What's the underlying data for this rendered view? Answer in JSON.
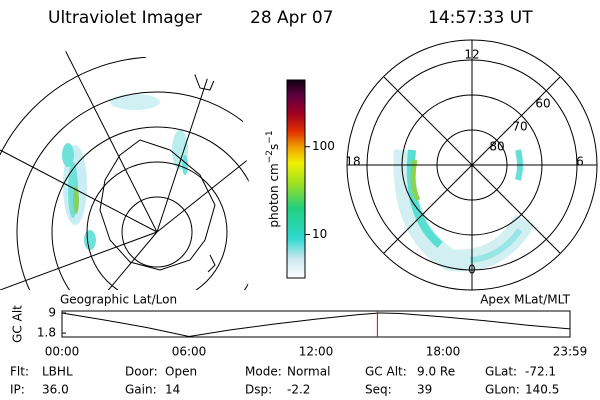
{
  "header": {
    "title": "Ultraviolet Imager",
    "date": "28 Apr 07",
    "time": "14:57:33 UT"
  },
  "colorbar": {
    "label": "photon cm",
    "exp1": "−2",
    "unit2": "s",
    "exp2": "−1",
    "lim": [
      3.2,
      575
    ],
    "log": true,
    "ticks": [
      10,
      100
    ]
  },
  "geo_panel": {
    "label": "Geographic Lat/Lon"
  },
  "polar_panel": {
    "label": "Apex MLat/MLT",
    "mlt_labels": [
      "12",
      "6",
      "0",
      "18"
    ],
    "lat_labels": [
      "80",
      "70",
      "60"
    ]
  },
  "altitude_plot": {
    "y_label": "GC Alt",
    "ylim": [
      0.4,
      9.7
    ],
    "yticks": [
      9.0,
      1.8
    ],
    "xticks": [
      "00:00",
      "06:00",
      "12:00",
      "18:00",
      "23:59"
    ],
    "xlim": [
      0,
      24
    ],
    "hours": [
      0,
      2,
      4,
      6,
      8,
      10,
      12,
      14,
      15,
      16,
      18,
      20,
      22,
      24
    ],
    "values": [
      9.0,
      6.5,
      3.8,
      0.6,
      3.0,
      5.0,
      6.8,
      8.4,
      9.0,
      8.8,
      7.6,
      6.2,
      4.6,
      3.3
    ],
    "current_hour": 14.9
  },
  "info": [
    [
      {
        "key": "Flt:",
        "val": "LBHL"
      },
      {
        "key": "Door:",
        "val": "Open"
      },
      {
        "key": "Mode:",
        "val": "Normal"
      },
      {
        "key": "GC Alt:",
        "val": "9.0 Re"
      },
      {
        "key": "GLat:",
        "val": "-72.1"
      }
    ],
    [
      {
        "key": "IP:",
        "val": "36.0"
      },
      {
        "key": "Gain:",
        "val": "14"
      },
      {
        "key": "Dsp:",
        "val": "-2.2"
      },
      {
        "key": "Seq:",
        "val": "39"
      },
      {
        "key": "GLon:",
        "val": "140.5"
      }
    ]
  ]
}
